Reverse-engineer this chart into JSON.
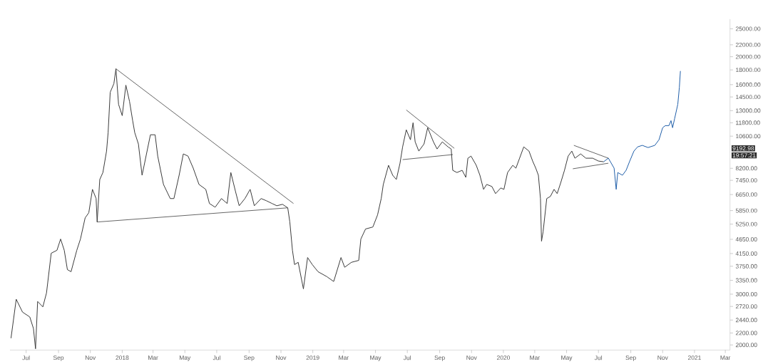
{
  "chart_data": {
    "type": "line",
    "log": "y",
    "grid": false,
    "xlim": [
      "2017-05-31",
      "2021-03-10"
    ],
    "xticks": [
      {
        "value": "2017-07-01",
        "label": "Jul"
      },
      {
        "value": "2017-09-01",
        "label": "Sep"
      },
      {
        "value": "2017-11-01",
        "label": "Nov"
      },
      {
        "value": "2018-01-01",
        "label": "2018"
      },
      {
        "value": "2018-03-01",
        "label": "Mar"
      },
      {
        "value": "2018-05-01",
        "label": "May"
      },
      {
        "value": "2018-07-01",
        "label": "Jul"
      },
      {
        "value": "2018-09-01",
        "label": "Sep"
      },
      {
        "value": "2018-11-01",
        "label": "Nov"
      },
      {
        "value": "2019-01-01",
        "label": "2019"
      },
      {
        "value": "2019-03-01",
        "label": "Mar"
      },
      {
        "value": "2019-05-01",
        "label": "May"
      },
      {
        "value": "2019-07-01",
        "label": "Jul"
      },
      {
        "value": "2019-09-01",
        "label": "Sep"
      },
      {
        "value": "2019-11-01",
        "label": "Nov"
      },
      {
        "value": "2020-01-01",
        "label": "2020"
      },
      {
        "value": "2020-03-01",
        "label": "Mar"
      },
      {
        "value": "2020-05-01",
        "label": "May"
      },
      {
        "value": "2020-07-01",
        "label": "Jul"
      },
      {
        "value": "2020-09-01",
        "label": "Sep"
      },
      {
        "value": "2020-11-01",
        "label": "Nov"
      },
      {
        "value": "2021-01-01",
        "label": "2021"
      },
      {
        "value": "2021-03-01",
        "label": "Mar"
      }
    ],
    "ylim": [
      1920,
      27000
    ],
    "yticks": [
      {
        "value": 2000,
        "label": "2000.00"
      },
      {
        "value": 2200,
        "label": "2200.00"
      },
      {
        "value": 2440,
        "label": "2440.00"
      },
      {
        "value": 2720,
        "label": "2720.00"
      },
      {
        "value": 3000,
        "label": "3000.00"
      },
      {
        "value": 3350,
        "label": "3350.00"
      },
      {
        "value": 3750,
        "label": "3750.00"
      },
      {
        "value": 4150,
        "label": "4150.00"
      },
      {
        "value": 4650,
        "label": "4650.00"
      },
      {
        "value": 5250,
        "label": "5250.00"
      },
      {
        "value": 5850,
        "label": "5850.00"
      },
      {
        "value": 6650,
        "label": "6650.00"
      },
      {
        "value": 7450,
        "label": "7450.00"
      },
      {
        "value": 8200,
        "label": "8200.00"
      },
      {
        "value": 10600,
        "label": "10600.00"
      },
      {
        "value": 11800,
        "label": "11800.00"
      },
      {
        "value": 13000,
        "label": "13000.00"
      },
      {
        "value": 14500,
        "label": "14500.00"
      },
      {
        "value": 16000,
        "label": "16000.00"
      },
      {
        "value": 18000,
        "label": "18000.00"
      },
      {
        "value": 20000,
        "label": "20000.00"
      },
      {
        "value": 22000,
        "label": "22000.00"
      },
      {
        "value": 25000,
        "label": "25000.00"
      }
    ],
    "annotations": [
      "9192.98",
      "19:57:21"
    ],
    "series": [
      {
        "color": "#3a3a3a",
        "x": [
          "2017-06-02",
          "2017-06-12",
          "2017-06-24",
          "2017-07-08",
          "2017-07-15",
          "2017-07-19",
          "2017-07-23",
          "2017-08-02",
          "2017-08-09",
          "2017-08-18",
          "2017-08-29",
          "2017-09-05",
          "2017-09-12",
          "2017-09-18",
          "2017-09-25",
          "2017-10-06",
          "2017-10-13",
          "2017-10-22",
          "2017-10-29",
          "2017-11-05",
          "2017-11-12",
          "2017-11-14",
          "2017-11-19",
          "2017-11-25",
          "2017-12-02",
          "2017-12-05",
          "2017-12-09",
          "2017-12-16",
          "2017-12-20",
          "2017-12-25",
          "2018-01-01",
          "2018-01-08",
          "2018-01-15",
          "2018-01-21",
          "2018-01-25",
          "2018-02-01",
          "2018-02-08",
          "2018-02-12",
          "2018-02-24",
          "2018-03-05",
          "2018-03-10",
          "2018-03-21",
          "2018-04-03",
          "2018-04-10",
          "2018-04-20",
          "2018-04-28",
          "2018-05-07",
          "2018-05-17",
          "2018-05-28",
          "2018-06-10",
          "2018-06-17",
          "2018-06-28",
          "2018-07-10",
          "2018-07-21",
          "2018-07-28",
          "2018-08-06",
          "2018-08-13",
          "2018-08-24",
          "2018-09-03",
          "2018-09-11",
          "2018-09-24",
          "2018-10-04",
          "2018-10-15",
          "2018-10-24",
          "2018-11-04",
          "2018-11-14",
          "2018-11-18",
          "2018-11-23",
          "2018-11-27",
          "2018-12-04",
          "2018-12-14",
          "2018-12-22",
          "2018-12-31",
          "2019-01-11",
          "2019-01-28",
          "2019-02-10",
          "2019-02-24",
          "2019-03-03",
          "2019-03-16",
          "2019-03-30",
          "2019-04-03",
          "2019-04-12",
          "2019-04-26",
          "2019-05-05",
          "2019-05-12",
          "2019-05-16",
          "2019-05-26",
          "2019-06-03",
          "2019-06-10",
          "2019-06-17",
          "2019-06-22",
          "2019-06-29",
          "2019-07-07",
          "2019-07-12",
          "2019-07-16",
          "2019-07-23",
          "2019-08-02",
          "2019-08-09",
          "2019-08-20",
          "2019-08-27",
          "2019-09-06",
          "2019-09-17",
          "2019-09-23",
          "2019-09-26",
          "2019-10-04",
          "2019-10-14",
          "2019-10-21",
          "2019-10-25",
          "2019-10-31",
          "2019-11-10",
          "2019-11-17",
          "2019-11-24",
          "2019-11-30",
          "2019-12-10",
          "2019-12-17",
          "2019-12-27",
          "2020-01-02",
          "2020-01-09",
          "2020-01-19",
          "2020-01-25",
          "2020-02-01",
          "2020-02-09",
          "2020-02-19",
          "2020-02-26",
          "2020-03-03",
          "2020-03-08",
          "2020-03-12",
          "2020-03-14",
          "2020-03-17",
          "2020-03-24",
          "2020-03-31",
          "2020-04-07",
          "2020-04-13",
          "2020-04-20",
          "2020-04-27",
          "2020-05-04",
          "2020-05-11",
          "2020-05-17",
          "2020-05-28",
          "2020-06-07",
          "2020-06-20",
          "2020-07-01",
          "2020-07-11"
        ],
        "values": [
          2110,
          2880,
          2600,
          2500,
          2280,
          1940,
          2830,
          2710,
          3030,
          4160,
          4260,
          4660,
          4260,
          3650,
          3590,
          4260,
          4660,
          5520,
          5750,
          6930,
          6440,
          5340,
          7500,
          7930,
          9410,
          10900,
          15060,
          16120,
          18160,
          13670,
          12490,
          15930,
          13990,
          12000,
          10900,
          9960,
          7760,
          8400,
          10720,
          10720,
          9040,
          7210,
          6440,
          6440,
          7760,
          9200,
          9040,
          8210,
          7210,
          6930,
          6190,
          6010,
          6440,
          6190,
          7930,
          6810,
          6080,
          6440,
          6930,
          6080,
          6440,
          6330,
          6190,
          6080,
          6150,
          5980,
          5340,
          4260,
          3800,
          3870,
          3130,
          4020,
          3800,
          3590,
          3450,
          3320,
          4020,
          3720,
          3870,
          3930,
          4660,
          5050,
          5130,
          5650,
          6440,
          7210,
          8400,
          7760,
          7500,
          8540,
          9730,
          11150,
          10300,
          11800,
          10130,
          9410,
          9960,
          11340,
          10130,
          9570,
          10130,
          9730,
          9570,
          8070,
          7930,
          8070,
          7630,
          8890,
          9040,
          8400,
          7760,
          6930,
          7210,
          7090,
          6700,
          7010,
          6930,
          7930,
          8400,
          8210,
          8890,
          9730,
          9410,
          8690,
          8210,
          7760,
          6440,
          4580,
          4930,
          6440,
          6550,
          6930,
          6700,
          7330,
          8070,
          9040,
          9410,
          8890,
          9200,
          8890,
          8890,
          8690,
          8640
        ]
      },
      {
        "color": "#1f5ea8",
        "x": [
          "2020-07-11",
          "2020-07-20",
          "2020-07-31",
          "2020-08-04",
          "2020-08-07",
          "2020-08-16",
          "2020-08-23",
          "2020-08-30",
          "2020-09-07",
          "2020-09-14",
          "2020-09-23",
          "2020-10-04",
          "2020-10-17",
          "2020-10-25",
          "2020-11-01",
          "2020-11-06",
          "2020-11-13",
          "2020-11-17",
          "2020-11-20",
          "2020-11-24",
          "2020-11-30",
          "2020-12-03",
          "2020-12-05"
        ],
        "values": [
          8640,
          8890,
          8210,
          6930,
          7930,
          7760,
          8070,
          8690,
          9410,
          9730,
          9850,
          9680,
          9850,
          10300,
          11340,
          11530,
          11530,
          12000,
          11340,
          12210,
          13670,
          15660,
          17840
        ]
      },
      {
        "color": "#222222",
        "x": [
          "2017-12-20",
          "2018-11-25"
        ],
        "values": [
          18160,
          6190
        ]
      },
      {
        "color": "#222222",
        "x": [
          "2017-11-14",
          "2018-11-14"
        ],
        "values": [
          5340,
          5980
        ]
      },
      {
        "color": "#222222",
        "x": [
          "2019-06-29",
          "2019-09-29"
        ],
        "values": [
          13070,
          9620
        ]
      },
      {
        "color": "#222222",
        "x": [
          "2019-06-22",
          "2019-09-26"
        ],
        "values": [
          8790,
          9150
        ]
      },
      {
        "color": "#222222",
        "x": [
          "2020-05-15",
          "2020-07-20"
        ],
        "values": [
          9850,
          8890
        ]
      },
      {
        "color": "#222222",
        "x": [
          "2020-05-13",
          "2020-07-20"
        ],
        "values": [
          8170,
          8540
        ]
      }
    ]
  }
}
